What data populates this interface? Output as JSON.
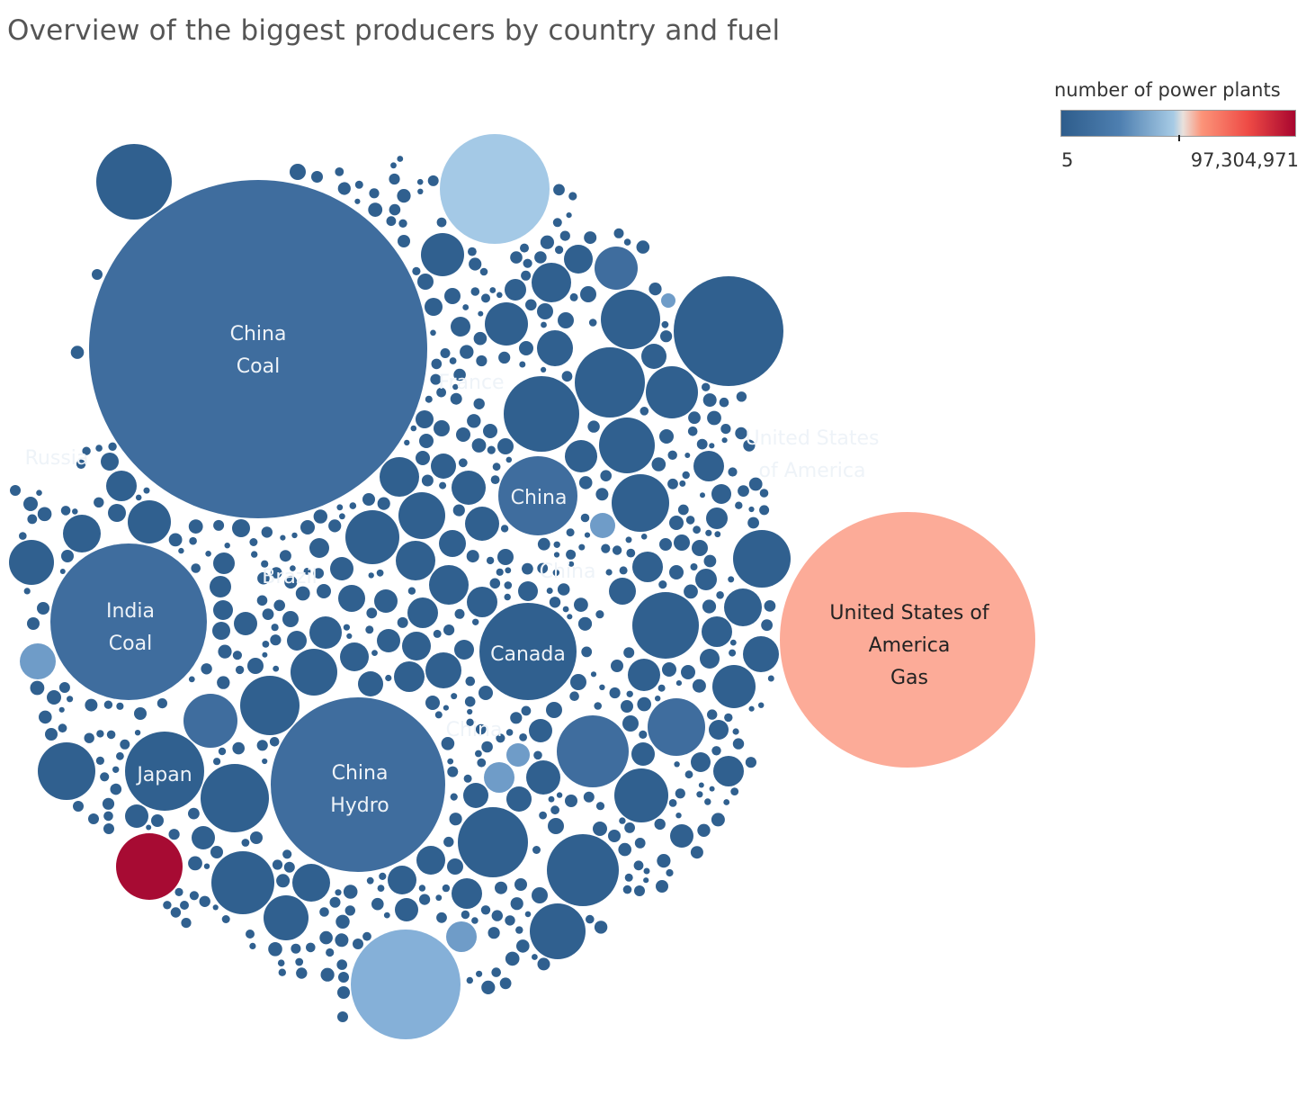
{
  "title": "Overview of the biggest producers by country and fuel",
  "legend": {
    "title": "number of power plants",
    "min_label": "5",
    "max_label": "97,304,971",
    "colors": [
      "#2e5d8c",
      "#a7cbe5",
      "#fc9479",
      "#a8062f"
    ]
  },
  "chart_data": {
    "type": "packed-bubble",
    "title": "Overview of the biggest producers by country and fuel",
    "color_legend": {
      "title": "number of power plants",
      "min": 5,
      "max": 97304971
    },
    "labeled_bubbles": [
      {
        "name": "China Coal",
        "lines": [
          "China",
          "Coal"
        ]
      },
      {
        "name": "United States of America Gas",
        "lines": [
          "United States of",
          "America",
          "Gas"
        ]
      },
      {
        "name": "China Hydro",
        "lines": [
          "China",
          "Hydro"
        ]
      },
      {
        "name": "United States of America",
        "lines": [
          "United States",
          "of America"
        ]
      },
      {
        "name": "India Coal",
        "lines": [
          "India",
          "Coal"
        ]
      },
      {
        "name": "Russia",
        "lines": [
          "Russia"
        ]
      },
      {
        "name": "Brazil",
        "lines": [
          "Brazil"
        ]
      },
      {
        "name": "France",
        "lines": [
          "France"
        ]
      },
      {
        "name": "China",
        "lines": [
          "China"
        ]
      },
      {
        "name": "China",
        "lines": [
          "China"
        ]
      },
      {
        "name": "Canada",
        "lines": [
          "Canada"
        ]
      },
      {
        "name": "China",
        "lines": [
          "China"
        ]
      },
      {
        "name": "Japan",
        "lines": [
          "Japan"
        ]
      }
    ]
  }
}
